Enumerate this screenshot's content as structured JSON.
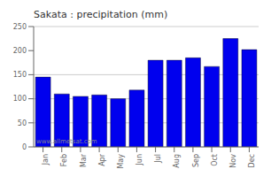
{
  "chart_data": {
    "type": "bar",
    "title": "Sakata : precipitation (mm)",
    "categories": [
      "Jan",
      "Feb",
      "Mar",
      "Apr",
      "May",
      "Jun",
      "Jul",
      "Aug",
      "Sep",
      "Oct",
      "Nov",
      "Dec"
    ],
    "values": [
      145,
      110,
      105,
      108,
      100,
      118,
      180,
      180,
      185,
      167,
      225,
      202
    ],
    "color": "#0000ee",
    "ylim": [
      0,
      250
    ],
    "yticks": [
      0,
      50,
      100,
      150,
      200,
      250
    ],
    "grid": true,
    "annotations": [
      "www.allmetsat.com"
    ]
  }
}
